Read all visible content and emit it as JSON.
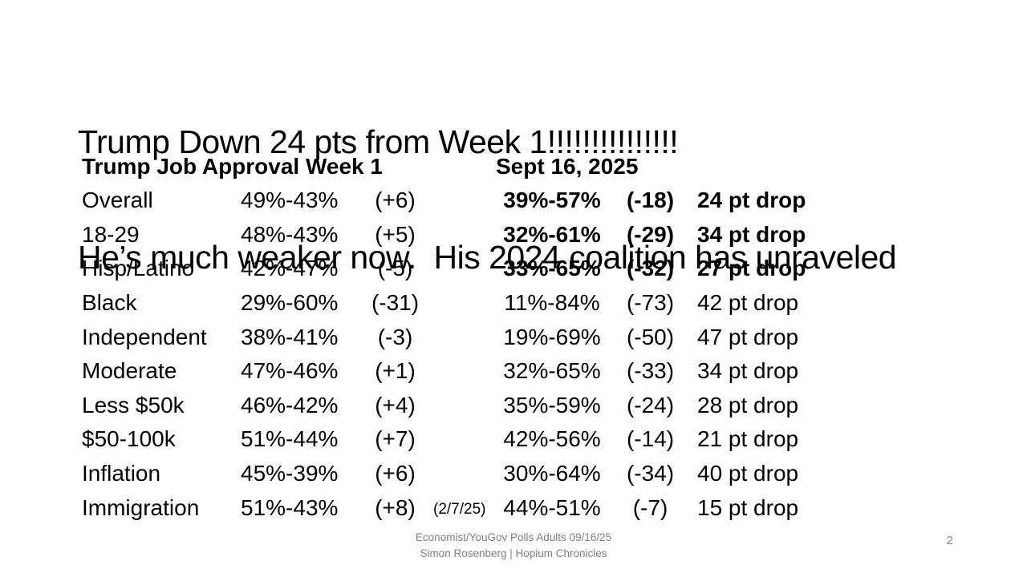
{
  "slide": {
    "title_line1": "Trump Down 24 pts from Week 1!!!!!!!!!!!!!!!",
    "title_line2": "He’s much weaker now.  His 2024 coalition has unraveled",
    "footer_line1": "Economist/YouGov Polls Adults 09/16/25",
    "footer_line2": "Simon Rosenberg | Hopium Chronicles",
    "page_number": "2"
  },
  "table": {
    "header": {
      "week1": "Trump Job Approval Week 1",
      "sept": "Sept 16, 2025"
    },
    "rows": [
      {
        "label": "Overall",
        "week1_result": "49%-43%",
        "week1_margin": "(+6)",
        "note": "",
        "sept_result": "39%-57%",
        "sept_margin": "(-18)",
        "drop": "24 pt drop"
      },
      {
        "label": "18-29",
        "week1_result": "48%-43%",
        "week1_margin": "(+5)",
        "note": "",
        "sept_result": "32%-61%",
        "sept_margin": "(-29)",
        "drop": "34 pt drop"
      },
      {
        "label": "Hisp/Latino",
        "week1_result": "42%-47%",
        "week1_margin": "(-5)",
        "note": "",
        "sept_result": "33%-65%",
        "sept_margin": "(-32)",
        "drop": "27 pt drop"
      },
      {
        "label": "Black",
        "week1_result": "29%-60%",
        "week1_margin": "(-31)",
        "note": "",
        "sept_result": "11%-84%",
        "sept_margin": "(-73)",
        "drop": "42 pt drop"
      },
      {
        "label": "Independent",
        "week1_result": "38%-41%",
        "week1_margin": "(-3)",
        "note": "",
        "sept_result": "19%-69%",
        "sept_margin": "(-50)",
        "drop": "47 pt drop"
      },
      {
        "label": "Moderate",
        "week1_result": "47%-46%",
        "week1_margin": "(+1)",
        "note": "",
        "sept_result": "32%-65%",
        "sept_margin": "(-33)",
        "drop": "34 pt drop"
      },
      {
        "label": "Less $50k",
        "week1_result": "46%-42%",
        "week1_margin": "(+4)",
        "note": "",
        "sept_result": "35%-59%",
        "sept_margin": "(-24)",
        "drop": "28 pt drop"
      },
      {
        "label": "$50-100k",
        "week1_result": "51%-44%",
        "week1_margin": "(+7)",
        "note": "",
        "sept_result": "42%-56%",
        "sept_margin": "(-14)",
        "drop": "21 pt drop"
      },
      {
        "label": "Inflation",
        "week1_result": "45%-39%",
        "week1_margin": "(+6)",
        "note": "",
        "sept_result": "30%-64%",
        "sept_margin": "(-34)",
        "drop": "40 pt drop"
      },
      {
        "label": "Immigration",
        "week1_result": "51%-43%",
        "week1_margin": "(+8)",
        "note": "(2/7/25)",
        "sept_result": "44%-51%",
        "sept_margin": "(-7)",
        "drop": "15 pt drop"
      }
    ]
  },
  "colors": {
    "background": "#ffffff",
    "text": "#000000",
    "muted_gray": "#808080"
  }
}
